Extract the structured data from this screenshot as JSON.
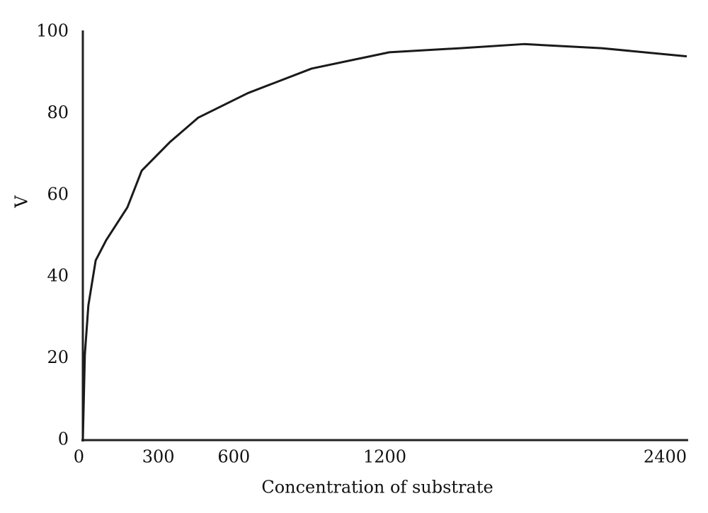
{
  "chart_data": {
    "type": "line",
    "x_label": "Concentration of substrate",
    "y_label": "V",
    "x": [
      0,
      8,
      22,
      51,
      93,
      177,
      234,
      346,
      459,
      656,
      909,
      1218,
      1500,
      1753,
      2062,
      2400
    ],
    "series": [
      {
        "color": "#1a1a1a",
        "values": [
          0,
          21,
          33,
          44,
          49,
          57,
          66,
          73,
          79,
          85,
          91,
          95,
          96,
          97,
          96,
          94
        ]
      }
    ],
    "xlim": [
      0,
      2400
    ],
    "xticks": [
      0,
      300,
      600,
      1200,
      2400
    ],
    "ylim": [
      0,
      100
    ],
    "yticks": [
      0,
      20,
      40,
      60,
      80,
      100
    ]
  }
}
